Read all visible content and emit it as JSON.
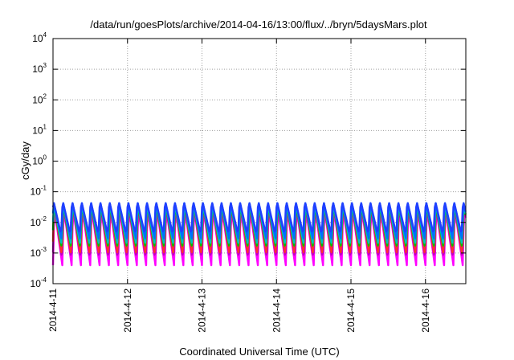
{
  "chart_data": {
    "type": "line",
    "title": "/data/run/goesPlots/archive/2014-04-16/13:00/flux/../bryn/5daysMars.plot",
    "xlabel": "Coordinated Universal Time (UTC)",
    "ylabel": "cGy/day",
    "x_range": [
      "2014-04-11T00:00",
      "2014-04-16T13:00"
    ],
    "x_tick_labels": [
      "2014-4-11",
      "2014-4-12",
      "2014-4-13",
      "2014-4-14",
      "2014-4-15",
      "2014-4-16"
    ],
    "y_scale": "log",
    "ylim": [
      0.0001,
      10000
    ],
    "y_tick_labels": [
      {
        "base": "10",
        "exp": "4"
      },
      {
        "base": "10",
        "exp": "3"
      },
      {
        "base": "10",
        "exp": "2"
      },
      {
        "base": "10",
        "exp": "1"
      },
      {
        "base": "10",
        "exp": "0"
      },
      {
        "base": "10",
        "exp": "-1"
      },
      {
        "base": "10",
        "exp": "-2"
      },
      {
        "base": "10",
        "exp": "-3"
      },
      {
        "base": "10",
        "exp": "-4"
      }
    ],
    "grid": true,
    "cycles_per_day": 8,
    "series": [
      {
        "color": "#ff00ff",
        "low": 0.0004,
        "high": 0.03
      },
      {
        "color": "#c000c0",
        "low": 0.0006,
        "high": 0.035
      },
      {
        "color": "#ff3030",
        "low": 0.0008,
        "high": 0.045
      },
      {
        "color": "#00c000",
        "low": 0.0015,
        "high": 0.04
      },
      {
        "color": "#00c0c0",
        "low": 0.002,
        "high": 0.045
      },
      {
        "color": "#0070ff",
        "low": 0.003,
        "high": 0.05
      },
      {
        "color": "#1f3fff",
        "low": 0.004,
        "high": 0.052
      }
    ]
  }
}
